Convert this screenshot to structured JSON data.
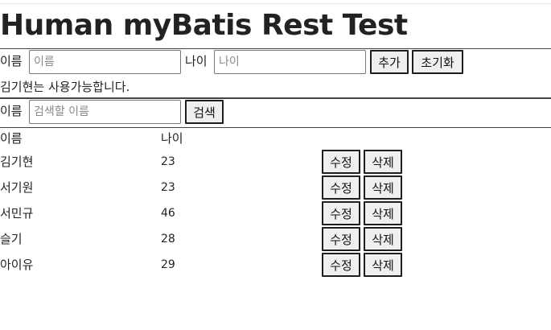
{
  "page": {
    "title": "Human myBatis Rest Test"
  },
  "add_form": {
    "name_label": "이름",
    "name_placeholder": "이름",
    "age_label": "나이",
    "age_placeholder": "나이",
    "add_button": "추가",
    "reset_button": "초기화"
  },
  "status_message": "김기현는 사용가능합니다.",
  "search_form": {
    "name_label": "이름",
    "name_placeholder": "검색할 이름",
    "search_button": "검색"
  },
  "table": {
    "headers": {
      "name": "이름",
      "age": "나이"
    },
    "rows": [
      {
        "name": "김기현",
        "age": "23",
        "edit": "수정",
        "delete": "삭제"
      },
      {
        "name": "서기원",
        "age": "23",
        "edit": "수정",
        "delete": "삭제"
      },
      {
        "name": "서민규",
        "age": "46",
        "edit": "수정",
        "delete": "삭제"
      },
      {
        "name": "슬기",
        "age": "28",
        "edit": "수정",
        "delete": "삭제"
      },
      {
        "name": "아이유",
        "age": "29",
        "edit": "수정",
        "delete": "삭제"
      }
    ]
  }
}
